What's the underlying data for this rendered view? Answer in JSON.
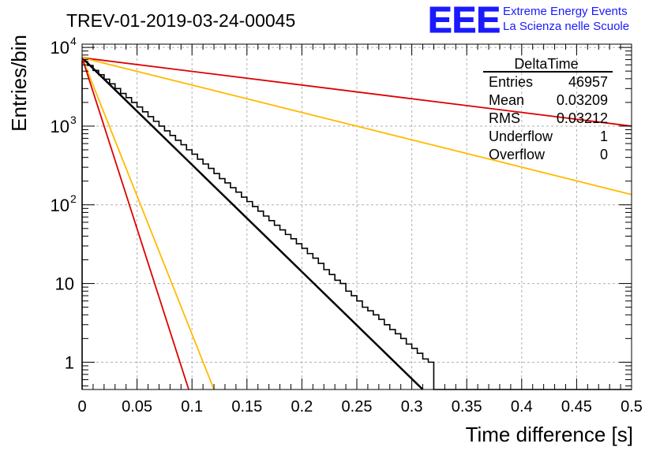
{
  "header": {
    "run_title": "TREV-01-2019-03-24-00045",
    "logo_text": "EEE",
    "logo_line1": "Extreme Energy Events",
    "logo_line2": "La Scienza nelle Scuole",
    "logo_color": "#1a1aff"
  },
  "stats_box": {
    "title": "DeltaTime",
    "rows": [
      {
        "label": "Entries",
        "value": "46957"
      },
      {
        "label": "Mean",
        "value": "0.03209"
      },
      {
        "label": "RMS",
        "value": "0.03212"
      },
      {
        "label": "Underflow",
        "value": "1"
      },
      {
        "label": "Overflow",
        "value": "0"
      }
    ]
  },
  "chart_data": {
    "type": "line",
    "title": "TREV-01-2019-03-24-00045",
    "xlabel": "Time difference [s]",
    "ylabel": "Entries/bin",
    "xlim": [
      0,
      0.5
    ],
    "ylim": [
      0.45,
      11000
    ],
    "yscale": "log",
    "grid": true,
    "x_ticks": [
      "0",
      "0.05",
      "0.1",
      "0.15",
      "0.2",
      "0.25",
      "0.3",
      "0.35",
      "0.4",
      "0.45",
      "0.5"
    ],
    "y_ticks": [
      {
        "value": 1,
        "label": "1"
      },
      {
        "value": 10,
        "label": "10"
      },
      {
        "value": 100,
        "label": "10",
        "exp": "2"
      },
      {
        "value": 1000,
        "label": "10",
        "exp": "3"
      },
      {
        "value": 10000,
        "label": "10",
        "exp": "4"
      }
    ],
    "histogram": {
      "bin_width": 0.005,
      "color": "#000000",
      "values": [
        6600,
        5900,
        5100,
        4500,
        3950,
        3450,
        3000,
        2600,
        2300,
        2000,
        1750,
        1520,
        1320,
        1150,
        1000,
        870,
        760,
        660,
        580,
        500,
        440,
        380,
        330,
        290,
        250,
        215,
        190,
        165,
        145,
        125,
        110,
        95,
        83,
        72,
        63,
        55,
        48,
        42,
        37,
        32,
        28,
        24,
        21,
        18,
        15,
        13,
        11,
        10,
        8,
        7,
        6,
        5,
        4.5,
        4,
        3.5,
        3,
        2.6,
        2.3,
        2,
        1.7,
        1.5,
        1.3,
        1.1,
        1,
        0,
        0,
        0,
        0,
        0,
        0,
        0,
        0,
        0,
        0,
        0,
        0,
        0,
        0,
        0,
        0,
        0,
        0,
        0,
        0,
        0,
        0,
        0,
        0,
        0,
        0,
        0,
        0,
        0,
        0,
        0,
        0,
        0,
        0,
        0,
        0
      ]
    },
    "series": [
      {
        "color": "#000000",
        "width": 2.5,
        "x": [
          0,
          0.31
        ],
        "y": [
          7400,
          0.45
        ]
      },
      {
        "color": "#dd0000",
        "width": 1.8,
        "x": [
          0,
          0.5
        ],
        "y": [
          7400,
          1000
        ]
      },
      {
        "color": "#ffbb00",
        "width": 1.8,
        "x": [
          0,
          0.5
        ],
        "y": [
          7400,
          135
        ]
      },
      {
        "color": "#ffbb00",
        "width": 1.8,
        "x": [
          0,
          0.12
        ],
        "y": [
          7400,
          0.45
        ]
      },
      {
        "color": "#dd0000",
        "width": 1.8,
        "x": [
          0,
          0.097
        ],
        "y": [
          7400,
          0.45
        ]
      }
    ]
  }
}
